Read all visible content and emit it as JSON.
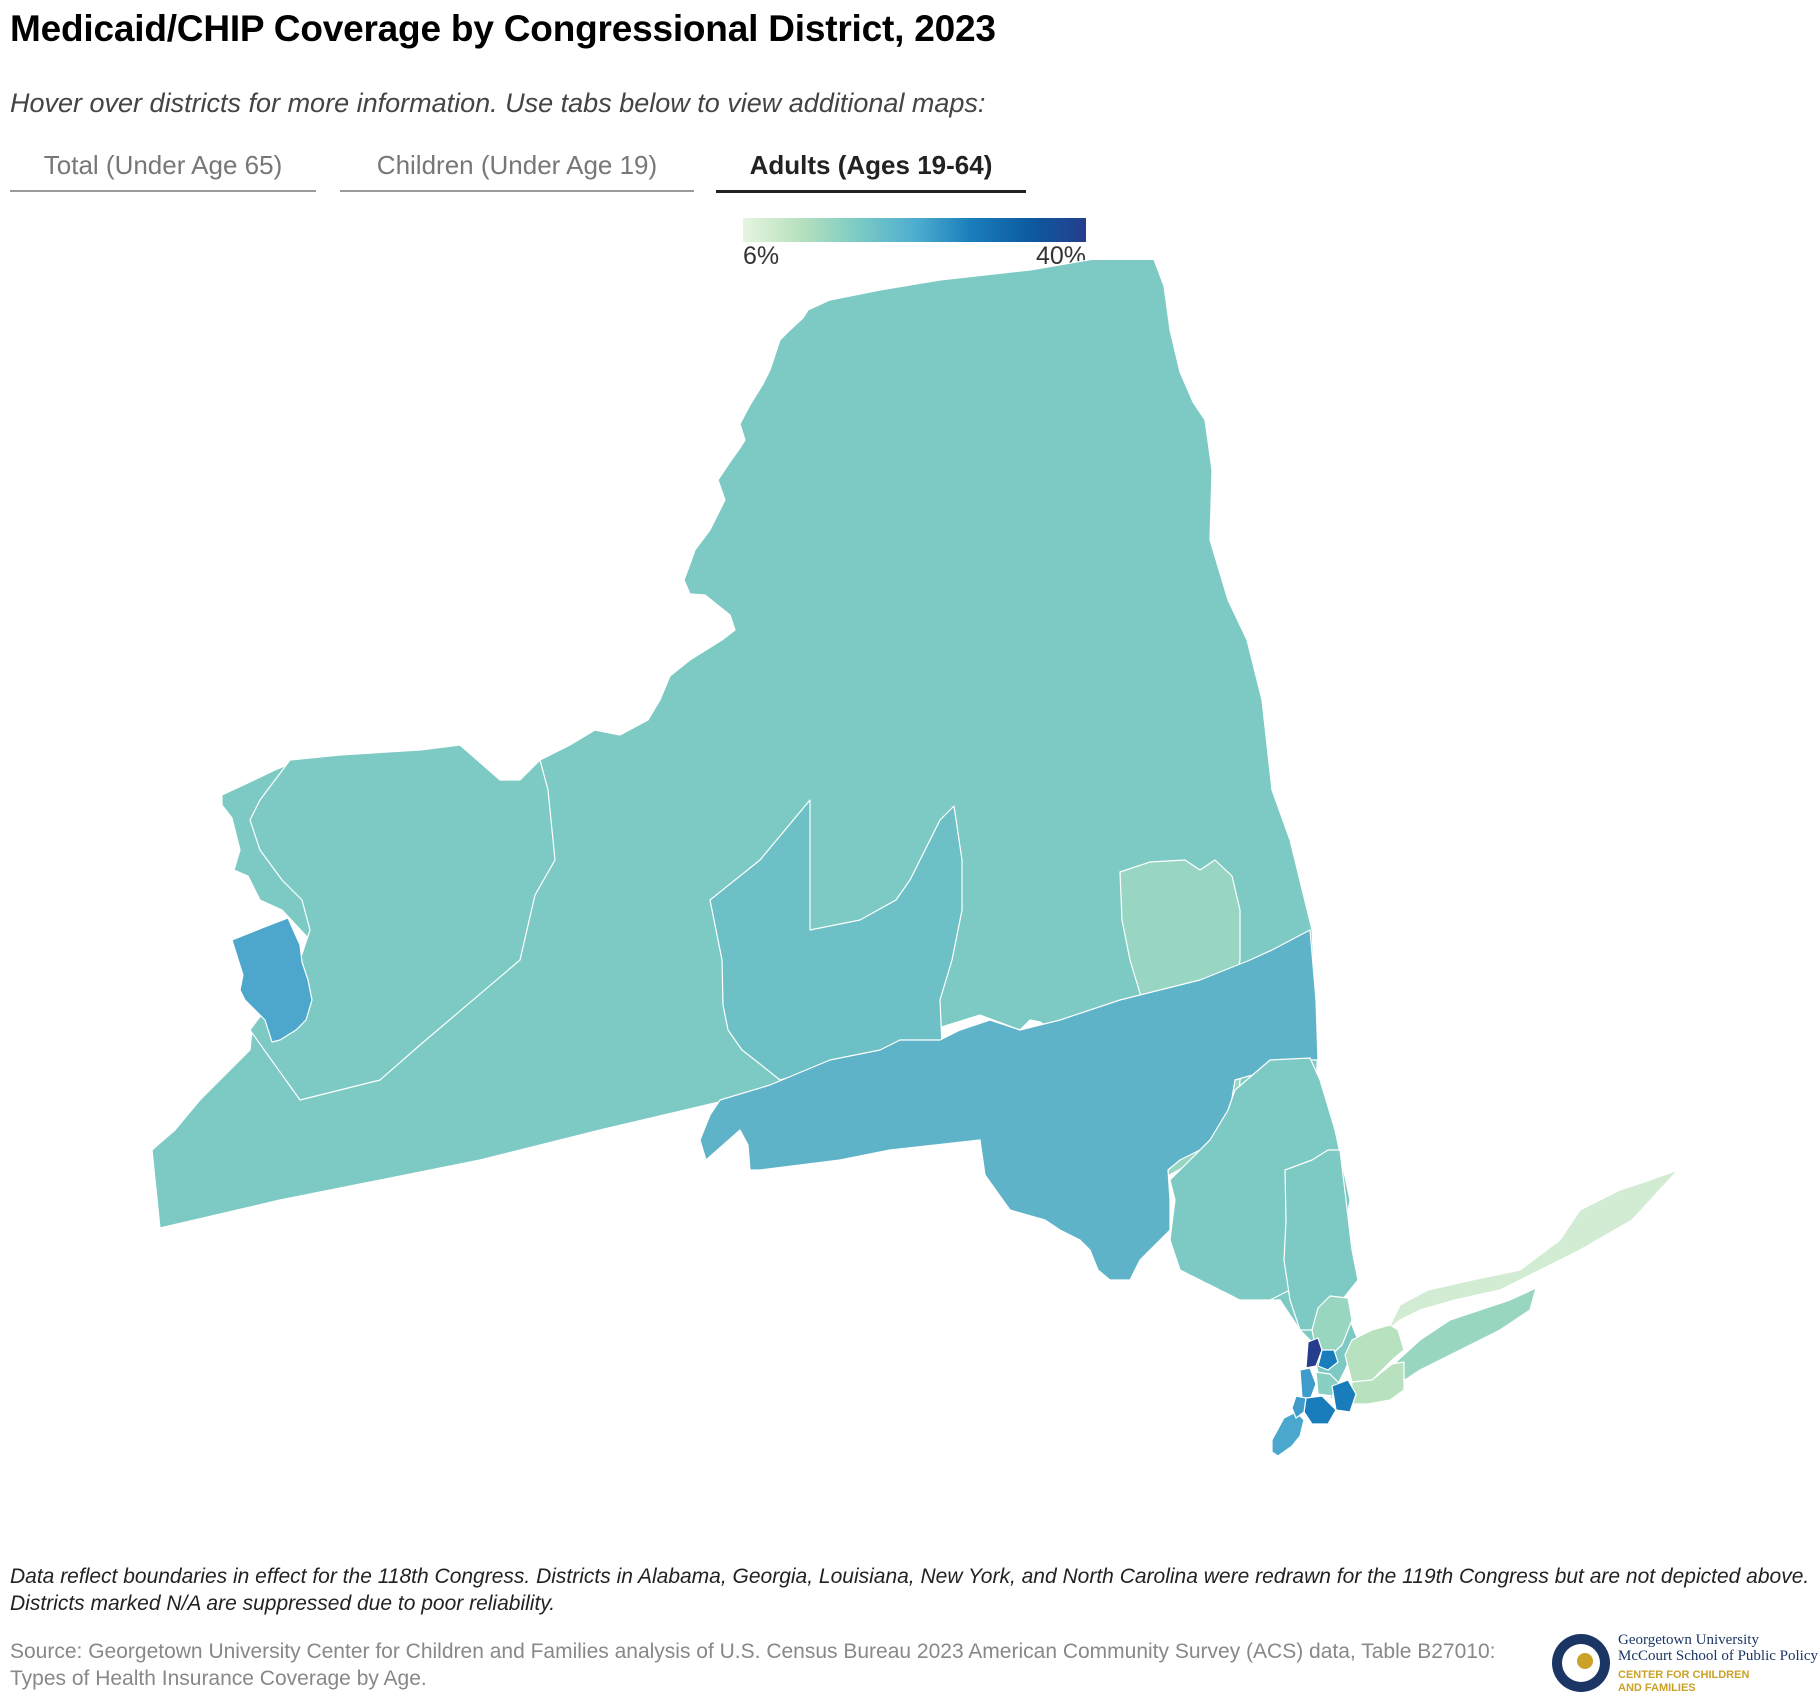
{
  "header": {
    "title": "Medicaid/CHIP Coverage by Congressional District, 2023",
    "subtitle": "Hover over districts for more information. Use tabs below to view additional maps:"
  },
  "tabs": [
    {
      "label": "Total (Under Age 65)",
      "active": false
    },
    {
      "label": "Children (Under Age 19)",
      "active": false
    },
    {
      "label": "Adults (Ages 19-64)",
      "active": true
    }
  ],
  "legend": {
    "min_label": "6%",
    "max_label": "40%",
    "min_value": 6,
    "max_value": 40,
    "colors": [
      "#e6f5e1",
      "#b7e1be",
      "#7ccbc4",
      "#4eaed0",
      "#1a7dbb",
      "#0c5ba1",
      "#253d8c"
    ]
  },
  "map": {
    "state": "New York",
    "fill_colors": {
      "state_base": "#7ccac3",
      "central_band": "#5eb3c8",
      "mohawk_district": "#6dc0c6",
      "capital_region": "#98d5c2",
      "niagara": "#4da6cb",
      "long_island_east": "#d2ecd3",
      "long_island_middle": "#b8e2bf",
      "long_island_south": "#99d6c0",
      "staten_island": "#4aa7cd",
      "nyc_dark": "#253d8c",
      "nyc_blue": "#1a7dbb",
      "nyc_mid": "#3f9bc9",
      "nyc_light": "#88cfc4"
    }
  },
  "footer": {
    "note": "Data reflect boundaries in effect for the 118th Congress. Districts in Alabama, Georgia, Louisiana, New York, and North Carolina were redrawn for the 119th Congress but are not depicted above. Districts marked N/A are suppressed due to poor reliability.",
    "source": "Source: Georgetown University Center for Children and Families analysis of U.S. Census Bureau 2023 American Community Survey (ACS) data, Table B27010: Types of Health Insurance Coverage by Age.",
    "logo": {
      "line1": "Georgetown University",
      "line2": "McCourt School of Public Policy",
      "line3": "CENTER FOR CHILDREN",
      "line4": "AND FAMILIES"
    }
  }
}
